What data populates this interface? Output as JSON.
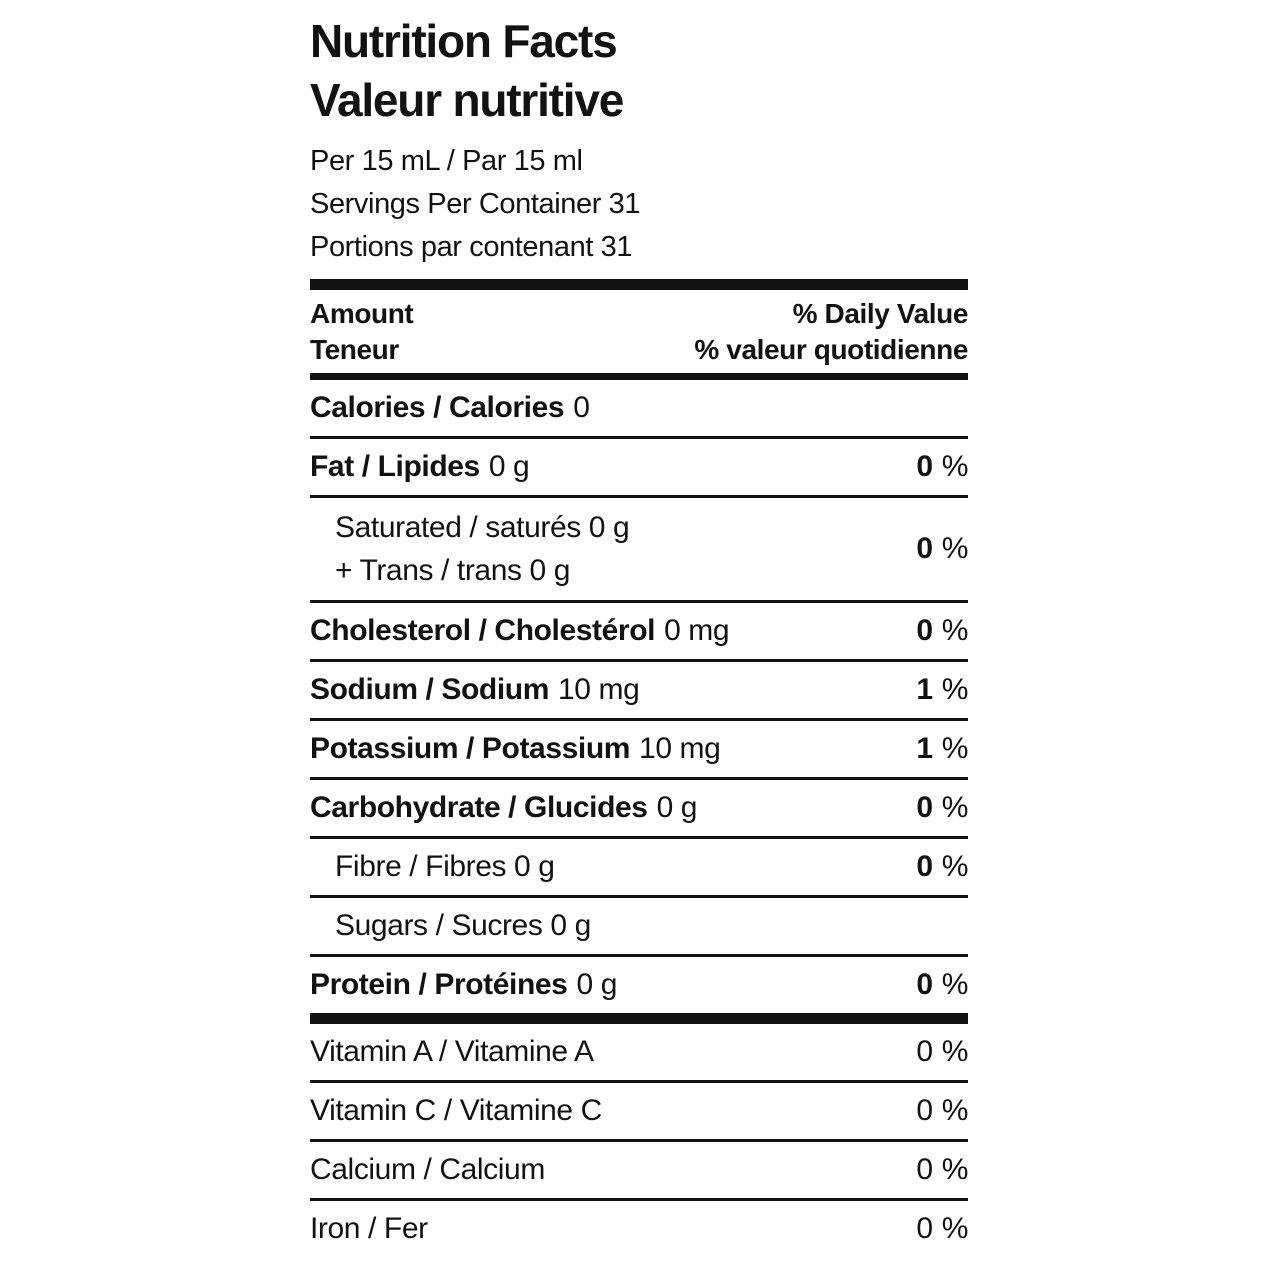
{
  "title": {
    "en": "Nutrition Facts",
    "fr": "Valeur nutritive"
  },
  "serving": {
    "per": "Per 15 mL / Par 15 ml",
    "servings_per_container_en": "Servings Per Container 31",
    "servings_per_container_fr": "Portions par contenant 31"
  },
  "column_header": {
    "amount_en": "Amount",
    "amount_fr": "Teneur",
    "daily_value_en": "% Daily Value",
    "daily_value_fr": "% valeur quotidienne"
  },
  "percent_sign": "%",
  "nutrients": [
    {
      "id": "calories",
      "name": "Calories / Calories",
      "amount": "0",
      "dv": null
    },
    {
      "id": "fat",
      "name": "Fat / Lipides",
      "amount": "0 g",
      "dv": "0"
    },
    {
      "id": "saturated-trans",
      "lines": [
        "Saturated / saturés 0 g",
        "+ Trans / trans 0 g"
      ],
      "dv": "0"
    },
    {
      "id": "cholesterol",
      "name": "Cholesterol / Cholestérol",
      "amount": "0 mg",
      "dv": "0"
    },
    {
      "id": "sodium",
      "name": "Sodium / Sodium",
      "amount": "10 mg",
      "dv": "1"
    },
    {
      "id": "potassium",
      "name": "Potassium / Potassium",
      "amount": "10 mg",
      "dv": "1"
    },
    {
      "id": "carbohydrate",
      "name": "Carbohydrate / Glucides",
      "amount": "0 g",
      "dv": "0"
    },
    {
      "id": "fibre",
      "name": "Fibre / Fibres 0 g",
      "amount": "",
      "dv": "0"
    },
    {
      "id": "sugars",
      "name": "Sugars / Sucres 0 g",
      "amount": "",
      "dv": null
    },
    {
      "id": "protein",
      "name": "Protein / Protéines",
      "amount": "0 g",
      "dv": "0"
    }
  ],
  "micronutrients": [
    {
      "id": "vitamin-a",
      "name": "Vitamin A / Vitamine A",
      "dv": "0"
    },
    {
      "id": "vitamin-c",
      "name": "Vitamin C / Vitamine C",
      "dv": "0"
    },
    {
      "id": "calcium",
      "name": "Calcium / Calcium",
      "dv": "0"
    },
    {
      "id": "iron",
      "name": "Iron / Fer",
      "dv": "0"
    }
  ],
  "colors": {
    "text": "#121212",
    "background": "#ffffff",
    "rule": "#121212"
  }
}
